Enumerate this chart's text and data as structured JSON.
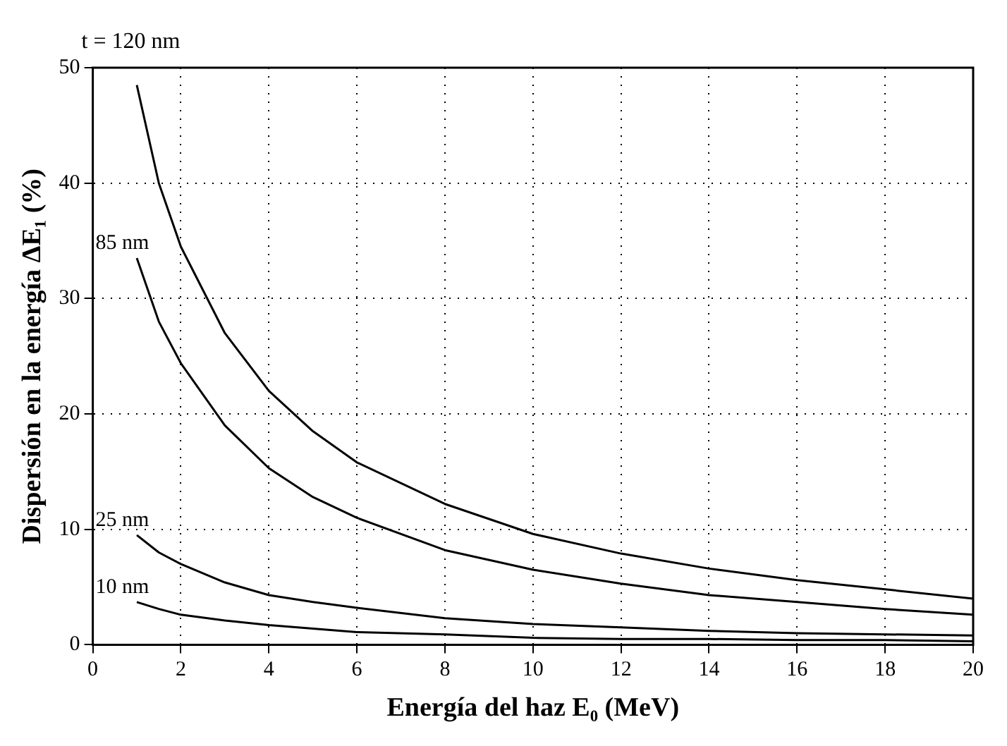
{
  "chart_data": {
    "type": "line",
    "xlabel": "Energía del haz E₀ (MeV)",
    "ylabel": "Dispersión en la energía ΔE₁ (%)",
    "xlim": [
      0,
      20
    ],
    "xticks": [
      0,
      2,
      4,
      6,
      8,
      10,
      12,
      14,
      16,
      18,
      20
    ],
    "ylim": [
      0,
      50
    ],
    "yticks": [
      0,
      10,
      20,
      30,
      40,
      50
    ],
    "grid": true,
    "marker": "none",
    "line_style": "solid",
    "series": [
      {
        "color": "#000000",
        "x": [
          1,
          1.5,
          2,
          3,
          4,
          5,
          6,
          8,
          10,
          12,
          14,
          16,
          18,
          20
        ],
        "values": [
          48.5,
          40,
          34.5,
          27,
          22,
          18.5,
          15.8,
          12.2,
          9.6,
          7.9,
          6.6,
          5.6,
          4.8,
          4.0
        ]
      },
      {
        "color": "#000000",
        "x": [
          1,
          1.5,
          2,
          3,
          4,
          5,
          6,
          8,
          10,
          12,
          14,
          16,
          18,
          20
        ],
        "values": [
          33.5,
          28,
          24.4,
          19,
          15.3,
          12.8,
          11,
          8.2,
          6.5,
          5.3,
          4.3,
          3.7,
          3.1,
          2.6
        ]
      },
      {
        "color": "#000000",
        "x": [
          1,
          1.5,
          2,
          3,
          4,
          5,
          6,
          8,
          10,
          12,
          14,
          16,
          18,
          20
        ],
        "values": [
          9.5,
          8,
          7,
          5.4,
          4.3,
          3.7,
          3.2,
          2.3,
          1.8,
          1.5,
          1.2,
          1,
          0.9,
          0.8
        ]
      },
      {
        "color": "#000000",
        "x": [
          1,
          1.5,
          2,
          3,
          4,
          5,
          6,
          8,
          10,
          12,
          14,
          16,
          18,
          20
        ],
        "values": [
          3.7,
          3.1,
          2.6,
          2.1,
          1.7,
          1.4,
          1.1,
          0.9,
          0.6,
          0.5,
          0.5,
          0.4,
          0.4,
          0.3
        ]
      }
    ],
    "annotations": [
      "t = 120 nm",
      "85 nm",
      "25 nm",
      "10 nm"
    ]
  }
}
